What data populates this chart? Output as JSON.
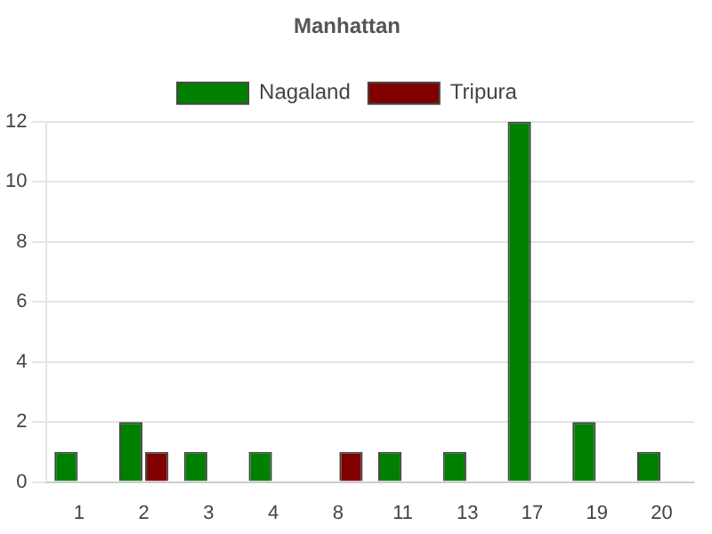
{
  "chart_data": {
    "type": "bar",
    "title": "Manhattan",
    "categories": [
      "1",
      "2",
      "3",
      "4",
      "8",
      "11",
      "13",
      "17",
      "19",
      "20"
    ],
    "series": [
      {
        "name": "Nagaland",
        "color": "#008000",
        "values": [
          1,
          2,
          1,
          1,
          0,
          1,
          1,
          12,
          2,
          1
        ]
      },
      {
        "name": "Tripura",
        "color": "#800000",
        "values": [
          0,
          1,
          0,
          0,
          1,
          0,
          0,
          0,
          0,
          0
        ]
      }
    ],
    "ylim": [
      0,
      12
    ],
    "yticks": [
      0,
      2,
      4,
      6,
      8,
      10,
      12
    ],
    "grid": "y",
    "legend": "top"
  }
}
